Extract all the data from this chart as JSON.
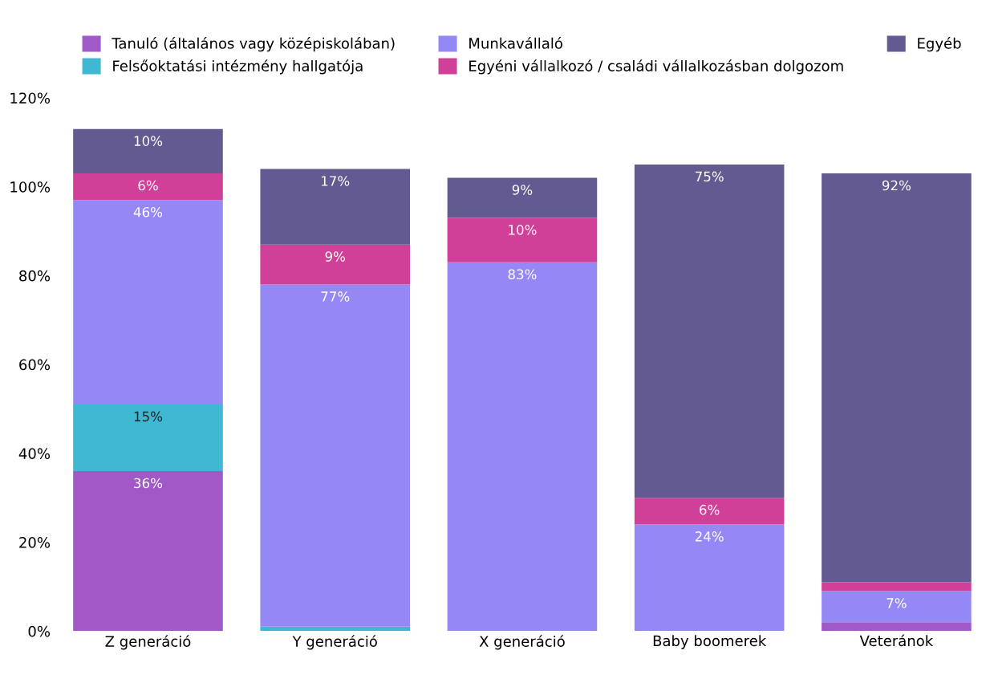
{
  "chart_data": {
    "type": "bar",
    "stacked": true,
    "legend": "top",
    "grid": false,
    "categories": [
      "Z generáció",
      "Y generáció",
      "X generáció",
      "Baby boomerek",
      "Veteránok"
    ],
    "ylim": [
      0,
      120
    ],
    "yticks": [
      {
        "value": 0,
        "label": "0%"
      },
      {
        "value": 20,
        "label": "20%"
      },
      {
        "value": 40,
        "label": "40%"
      },
      {
        "value": 60,
        "label": "60%"
      },
      {
        "value": 80,
        "label": "80%"
      },
      {
        "value": 100,
        "label": "100%"
      },
      {
        "value": 120,
        "label": "120%"
      }
    ],
    "series": [
      {
        "name": "Tanuló (általános vagy középiskolában)",
        "color": "#a259c8",
        "values": [
          36,
          0,
          0,
          0,
          2
        ],
        "value_labels": [
          "36%",
          null,
          null,
          null,
          null
        ]
      },
      {
        "name": "Felsőoktatási intézmény hallgatója",
        "color": "#3fb8d4",
        "values": [
          15,
          1,
          0,
          0,
          0
        ],
        "value_labels": [
          "15%",
          null,
          null,
          null,
          null
        ]
      },
      {
        "name": "Munkavállaló",
        "color": "#9488f5",
        "values": [
          46,
          77,
          83,
          24,
          7
        ],
        "value_labels": [
          "46%",
          "77%",
          "83%",
          "24%",
          "7%"
        ]
      },
      {
        "name": "Egyéni vállalkozó / családi vállalkozásban dolgozom",
        "color": "#d03f98",
        "values": [
          6,
          9,
          10,
          6,
          2
        ],
        "value_labels": [
          "6%",
          "9%",
          "10%",
          "6%",
          null
        ]
      },
      {
        "name": "Egyéb",
        "color": "#625a91",
        "values": [
          10,
          17,
          9,
          75,
          92
        ],
        "value_labels": [
          "10%",
          "17%",
          "9%",
          "75%",
          "92%"
        ]
      }
    ]
  }
}
